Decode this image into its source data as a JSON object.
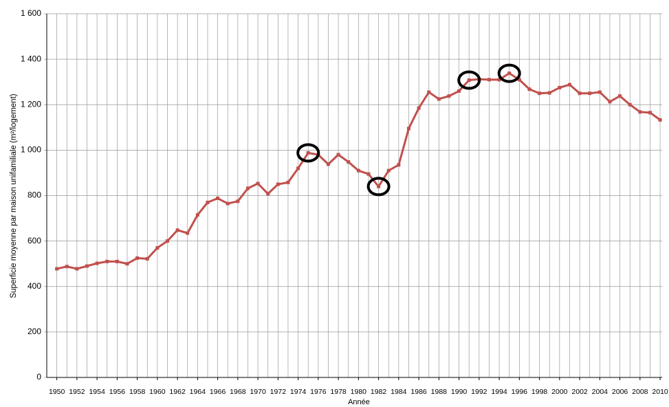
{
  "chart_data": {
    "type": "line",
    "ylabel": "Superficie moyenne par maison unifamiliale (m²/logement)",
    "xlabel": "Année",
    "x": [
      1950,
      1951,
      1952,
      1953,
      1954,
      1955,
      1956,
      1957,
      1958,
      1959,
      1960,
      1961,
      1962,
      1963,
      1964,
      1965,
      1966,
      1967,
      1968,
      1969,
      1970,
      1971,
      1972,
      1973,
      1974,
      1975,
      1976,
      1977,
      1978,
      1979,
      1980,
      1981,
      1982,
      1983,
      1984,
      1985,
      1986,
      1987,
      1988,
      1989,
      1990,
      1991,
      1992,
      1993,
      1994,
      1995,
      1996,
      1997,
      1998,
      1999,
      2000,
      2001,
      2002,
      2003,
      2004,
      2005,
      2006,
      2007,
      2008,
      2009,
      2010
    ],
    "series": [
      {
        "color": "#c0504d",
        "values": [
          478,
          488,
          478,
          490,
          502,
          510,
          510,
          500,
          525,
          522,
          570,
          600,
          648,
          635,
          715,
          770,
          788,
          765,
          775,
          832,
          853,
          808,
          850,
          858,
          920,
          988,
          980,
          938,
          980,
          948,
          910,
          895,
          840,
          910,
          935,
          1095,
          1185,
          1255,
          1225,
          1238,
          1260,
          1308,
          1312,
          1310,
          1310,
          1338,
          1310,
          1268,
          1250,
          1252,
          1275,
          1288,
          1250,
          1250,
          1255,
          1213,
          1238,
          1200,
          1168,
          1165,
          1133
        ]
      }
    ],
    "highlighted_x": [
      1975,
      1982,
      1991,
      1995
    ],
    "xlim": [
      1949,
      2010.2
    ],
    "xticks": [
      1950,
      1952,
      1954,
      1956,
      1958,
      1960,
      1962,
      1964,
      1966,
      1968,
      1970,
      1972,
      1974,
      1976,
      1978,
      1980,
      1982,
      1984,
      1986,
      1988,
      1990,
      1992,
      1994,
      1996,
      1998,
      2000,
      2002,
      2004,
      2006,
      2008,
      2010
    ],
    "ylim": [
      0,
      1600
    ],
    "yticks": [
      0,
      200,
      400,
      600,
      800,
      {
        "value": 1000,
        "label": "1 000"
      },
      {
        "value": 1200,
        "label": "1 200"
      },
      {
        "value": 1400,
        "label": "1 400"
      },
      {
        "value": 1600,
        "label": "1 600"
      }
    ],
    "grid": true
  }
}
